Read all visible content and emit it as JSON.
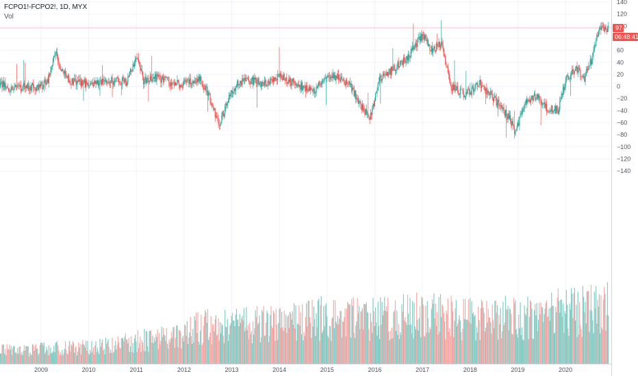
{
  "header": {
    "symbol": "FCPO1!-FCPO2!, 1D, MYX",
    "volume_label": "Vol"
  },
  "badges": {
    "last_price": "97",
    "countdown": "06:48:41"
  },
  "colors": {
    "up": "#26a69a",
    "down": "#ef5350",
    "vol_up": "#80cbc4",
    "vol_down": "#f7a9a7",
    "grid": "#f0f3fa",
    "axis_text": "#50535e",
    "price_line": "#ef5350"
  },
  "chart_data": {
    "type": "candlestick",
    "title": "FCPO1!-FCPO2!, 1D, MYX",
    "subtitle": "Vol",
    "ylim": [
      -160,
      140
    ],
    "y_ticks": [
      140,
      120,
      100,
      80,
      60,
      40,
      20,
      0,
      -20,
      -40,
      -60,
      -80,
      -100,
      -120,
      -140
    ],
    "x_tick_labels": [
      "2009",
      "2010",
      "2011",
      "2012",
      "2013",
      "2014",
      "2015",
      "2016",
      "2017",
      "2018",
      "2019",
      "2020"
    ],
    "x_range": [
      2008.13,
      2020.9
    ],
    "grid": true,
    "last_value": 97,
    "series": [
      {
        "name": "Price",
        "points": [
          [
            2008.13,
            5
          ],
          [
            2008.4,
            -5
          ],
          [
            2008.7,
            0
          ],
          [
            2009.0,
            0
          ],
          [
            2009.15,
            12
          ],
          [
            2009.3,
            60
          ],
          [
            2009.4,
            30
          ],
          [
            2009.6,
            8
          ],
          [
            2010.0,
            5
          ],
          [
            2010.4,
            10
          ],
          [
            2010.8,
            8
          ],
          [
            2011.0,
            45
          ],
          [
            2011.15,
            10
          ],
          [
            2011.4,
            15
          ],
          [
            2011.8,
            5
          ],
          [
            2012.0,
            5
          ],
          [
            2012.3,
            15
          ],
          [
            2012.5,
            -10
          ],
          [
            2012.65,
            -45
          ],
          [
            2012.75,
            -60
          ],
          [
            2012.9,
            -25
          ],
          [
            2013.1,
            5
          ],
          [
            2013.4,
            10
          ],
          [
            2013.7,
            5
          ],
          [
            2014.0,
            20
          ],
          [
            2014.2,
            8
          ],
          [
            2014.5,
            0
          ],
          [
            2014.7,
            -10
          ],
          [
            2015.0,
            20
          ],
          [
            2015.2,
            15
          ],
          [
            2015.5,
            0
          ],
          [
            2015.7,
            -30
          ],
          [
            2015.9,
            -55
          ],
          [
            2016.1,
            10
          ],
          [
            2016.4,
            30
          ],
          [
            2016.7,
            50
          ],
          [
            2017.0,
            85
          ],
          [
            2017.2,
            60
          ],
          [
            2017.4,
            70
          ],
          [
            2017.6,
            0
          ],
          [
            2017.9,
            -15
          ],
          [
            2018.2,
            5
          ],
          [
            2018.5,
            -20
          ],
          [
            2018.8,
            -50
          ],
          [
            2018.95,
            -75
          ],
          [
            2019.15,
            -25
          ],
          [
            2019.4,
            -15
          ],
          [
            2019.6,
            -35
          ],
          [
            2019.85,
            -40
          ],
          [
            2020.0,
            10
          ],
          [
            2020.2,
            30
          ],
          [
            2020.4,
            15
          ],
          [
            2020.55,
            45
          ],
          [
            2020.7,
            95
          ],
          [
            2020.9,
            97
          ]
        ]
      },
      {
        "name": "Vol",
        "relative_levels": [
          [
            2008.13,
            0.18
          ],
          [
            2009.0,
            0.2
          ],
          [
            2010.0,
            0.22
          ],
          [
            2011.0,
            0.3
          ],
          [
            2012.0,
            0.4
          ],
          [
            2012.5,
            0.52
          ],
          [
            2013.0,
            0.5
          ],
          [
            2014.0,
            0.55
          ],
          [
            2015.0,
            0.62
          ],
          [
            2016.0,
            0.6
          ],
          [
            2017.0,
            0.66
          ],
          [
            2018.0,
            0.6
          ],
          [
            2019.0,
            0.62
          ],
          [
            2020.0,
            0.7
          ],
          [
            2020.9,
            0.75
          ]
        ]
      }
    ]
  }
}
